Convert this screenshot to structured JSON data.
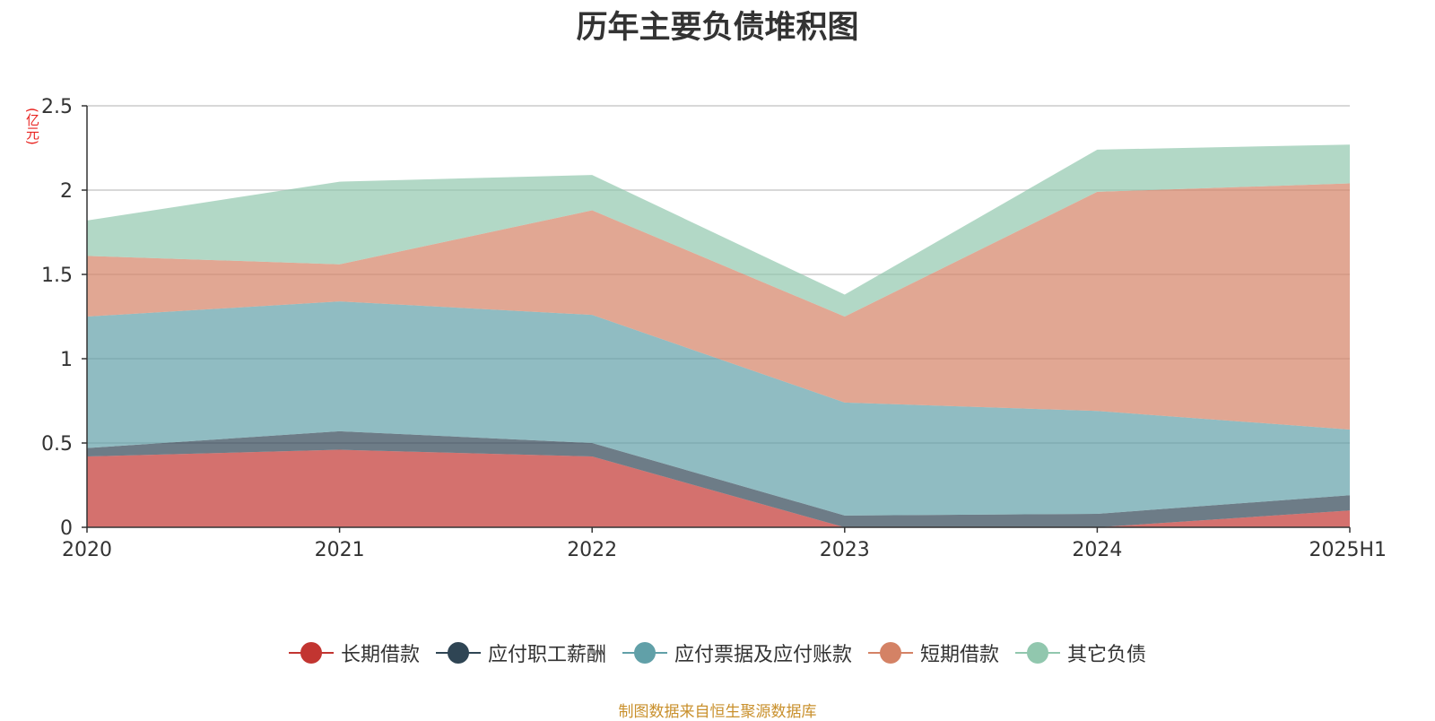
{
  "chart_data": {
    "type": "area",
    "stacked": true,
    "title": "历年主要负债堆积图",
    "unit_label": "(亿元)",
    "categories": [
      "2020",
      "2021",
      "2022",
      "2023",
      "2024",
      "2025H1"
    ],
    "ylim": [
      0,
      2.5
    ],
    "yticks": [
      "0",
      "0.5",
      "1",
      "1.5",
      "2",
      "2.5"
    ],
    "grid": true,
    "legend_position": "bottom",
    "series": [
      {
        "name": "长期借款",
        "color": "#c23531",
        "values": [
          0.42,
          0.46,
          0.42,
          0.0,
          0.0,
          0.1
        ]
      },
      {
        "name": "应付职工薪酬",
        "color": "#2f4554",
        "values": [
          0.05,
          0.11,
          0.08,
          0.07,
          0.08,
          0.09
        ]
      },
      {
        "name": "应付票据及应付账款",
        "color": "#61a0a8",
        "values": [
          0.78,
          0.77,
          0.76,
          0.67,
          0.61,
          0.39
        ]
      },
      {
        "name": "短期借款",
        "color": "#d48265",
        "values": [
          0.36,
          0.22,
          0.62,
          0.51,
          1.3,
          1.46
        ]
      },
      {
        "name": "其它负债",
        "color": "#91c7ae",
        "values": [
          0.21,
          0.49,
          0.21,
          0.13,
          0.25,
          0.23
        ]
      }
    ]
  },
  "footer": {
    "source_note": "制图数据来自恒生聚源数据库"
  }
}
